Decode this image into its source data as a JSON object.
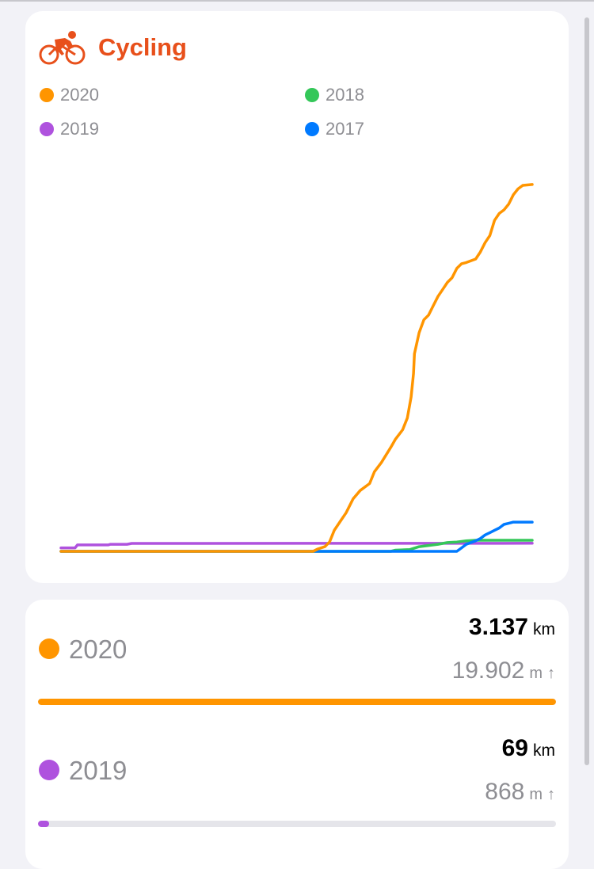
{
  "header": {
    "title": "Cycling",
    "icon": "cycling-icon",
    "accent": "#e8501b"
  },
  "legend": [
    {
      "label": "2020",
      "color": "#ff9500"
    },
    {
      "label": "2018",
      "color": "#34c759"
    },
    {
      "label": "2019",
      "color": "#af52de"
    },
    {
      "label": "2017",
      "color": "#007aff"
    }
  ],
  "chart_data": {
    "type": "line",
    "x_range": [
      0,
      100
    ],
    "y_range": [
      0,
      3150
    ],
    "grid": false,
    "legend_position": "top",
    "series": [
      {
        "name": "2020",
        "color": "#ff9500",
        "points": [
          [
            0,
            0
          ],
          [
            53.5,
            0
          ],
          [
            54.5,
            20
          ],
          [
            56,
            40
          ],
          [
            57,
            80
          ],
          [
            58,
            180
          ],
          [
            59.5,
            270
          ],
          [
            60.5,
            330
          ],
          [
            62,
            450
          ],
          [
            63.5,
            520
          ],
          [
            65.5,
            580
          ],
          [
            66.5,
            680
          ],
          [
            68,
            760
          ],
          [
            70,
            890
          ],
          [
            71,
            960
          ],
          [
            72.5,
            1040
          ],
          [
            73.5,
            1140
          ],
          [
            74.3,
            1320
          ],
          [
            74.8,
            1520
          ],
          [
            75,
            1690
          ],
          [
            76,
            1870
          ],
          [
            77,
            1980
          ],
          [
            78,
            2020
          ],
          [
            79,
            2100
          ],
          [
            80,
            2180
          ],
          [
            81,
            2240
          ],
          [
            82,
            2300
          ],
          [
            83,
            2340
          ],
          [
            84,
            2420
          ],
          [
            85,
            2460
          ],
          [
            86,
            2470
          ],
          [
            88,
            2500
          ],
          [
            89,
            2560
          ],
          [
            90,
            2640
          ],
          [
            91,
            2700
          ],
          [
            92,
            2830
          ],
          [
            93,
            2890
          ],
          [
            94,
            2920
          ],
          [
            95,
            2970
          ],
          [
            96,
            3050
          ],
          [
            97,
            3100
          ],
          [
            98,
            3130
          ],
          [
            100,
            3137
          ]
        ]
      },
      {
        "name": "2019",
        "color": "#af52de",
        "points": [
          [
            0,
            30
          ],
          [
            3,
            30
          ],
          [
            3.5,
            55
          ],
          [
            10,
            55
          ],
          [
            10.5,
            60
          ],
          [
            14,
            60
          ],
          [
            15,
            68
          ],
          [
            100,
            69
          ]
        ]
      },
      {
        "name": "2018",
        "color": "#34c759",
        "points": [
          [
            0,
            0
          ],
          [
            70,
            0
          ],
          [
            71,
            10
          ],
          [
            74,
            15
          ],
          [
            76,
            40
          ],
          [
            80,
            60
          ],
          [
            82,
            75
          ],
          [
            84,
            80
          ],
          [
            86,
            90
          ],
          [
            88,
            95
          ],
          [
            100,
            95
          ]
        ]
      },
      {
        "name": "2017",
        "color": "#007aff",
        "points": [
          [
            0,
            0
          ],
          [
            84,
            0
          ],
          [
            85,
            30
          ],
          [
            86,
            60
          ],
          [
            88,
            90
          ],
          [
            89,
            110
          ],
          [
            90,
            140
          ],
          [
            91,
            160
          ],
          [
            92,
            180
          ],
          [
            93,
            200
          ],
          [
            94,
            230
          ],
          [
            95,
            240
          ],
          [
            96,
            250
          ],
          [
            100,
            250
          ]
        ]
      }
    ]
  },
  "stats": [
    {
      "year": "2020",
      "color": "#ff9500",
      "distance_value": "3.137",
      "distance_unit": "km",
      "elevation_value": "19.902",
      "elevation_unit": "m",
      "arrow": "↑",
      "progress": 1.0
    },
    {
      "year": "2019",
      "color": "#af52de",
      "distance_value": "69",
      "distance_unit": "km",
      "elevation_value": "868",
      "elevation_unit": "m",
      "arrow": "↑",
      "progress": 0.022
    }
  ]
}
